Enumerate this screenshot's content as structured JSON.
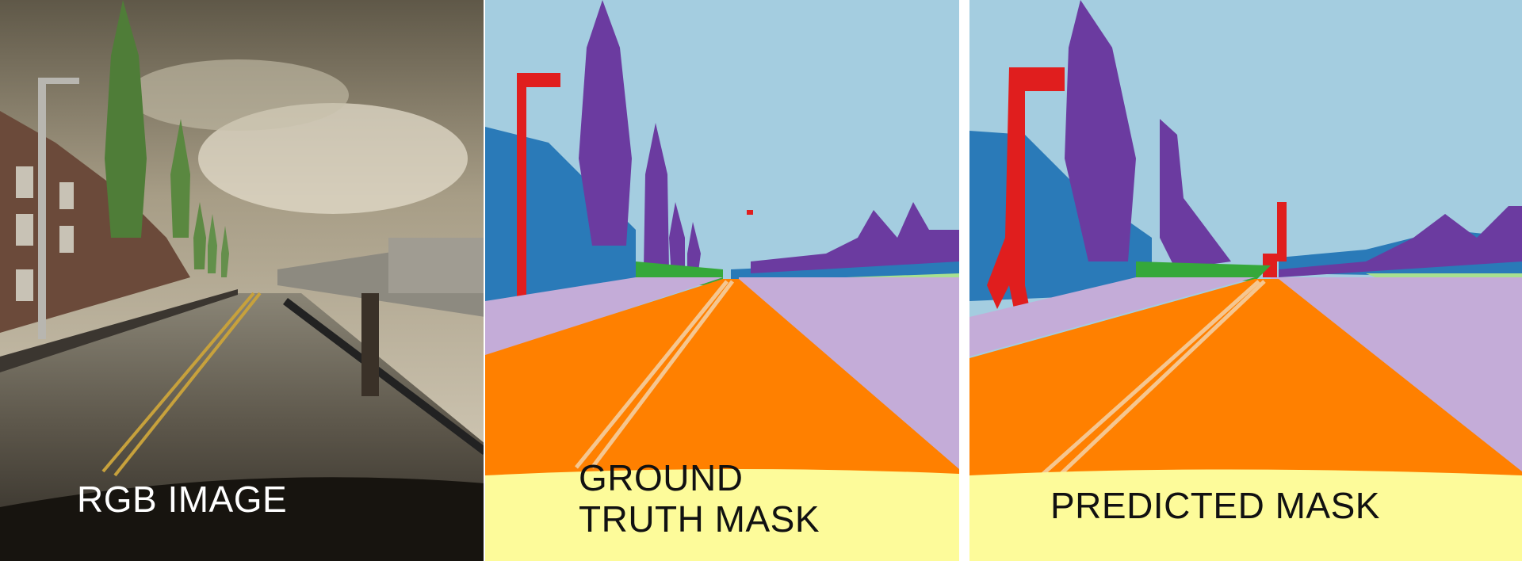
{
  "panels": [
    {
      "caption": "RGB IMAGE",
      "caption_color": "#ffffff"
    },
    {
      "caption": "GROUND\nTRUTH MASK",
      "caption_color": "#111111"
    },
    {
      "caption": "PREDICTED MASK",
      "caption_color": "#111111"
    }
  ],
  "colors": {
    "sky": "#a4cde0",
    "building": "#2a7ab8",
    "vegetation": "#6b3ba0",
    "pole": "#e01e1e",
    "road": "#ff8000",
    "lane_marking": "#f5c690",
    "sidewalk": "#c4acd8",
    "terrain_dark": "#35a83a",
    "terrain_light": "#a8e090",
    "ego_vehicle": "#fdfb9a"
  }
}
